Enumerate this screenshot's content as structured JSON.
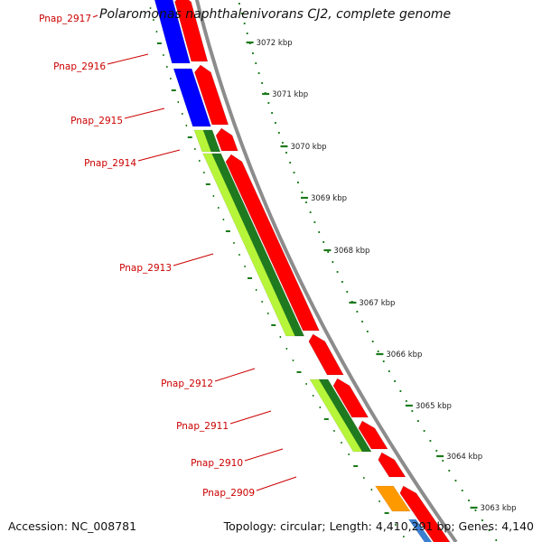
{
  "title": "Polaromonas naphthalenivorans CJ2, complete genome",
  "footer": {
    "accession": "Accession: NC_008781",
    "summary": "Topology: circular; Length: 4,410,291 bp; Genes: 4,140"
  },
  "colors": {
    "forward_strand": "#ff0000",
    "backbone": "#8c8c8c",
    "blue_category": "#0000ff",
    "green_category": "#1f7a1f",
    "lightgreen_category": "#b7f53a",
    "orange_category": "#ff9900",
    "label_red": "#cc0000",
    "tick_green": "#1a7a1a"
  },
  "genes": [
    {
      "name": "Pnap_2917"
    },
    {
      "name": "Pnap_2916"
    },
    {
      "name": "Pnap_2915"
    },
    {
      "name": "Pnap_2914"
    },
    {
      "name": "Pnap_2913"
    },
    {
      "name": "Pnap_2912"
    },
    {
      "name": "Pnap_2911"
    },
    {
      "name": "Pnap_2910"
    },
    {
      "name": "Pnap_2909"
    }
  ],
  "scale_labels": [
    "3072 kbp",
    "3071 kbp",
    "3070 kbp",
    "3069 kbp",
    "3068 kbp",
    "3067 kbp",
    "3066 kbp",
    "3065 kbp",
    "3064 kbp",
    "3063 kbp"
  ]
}
